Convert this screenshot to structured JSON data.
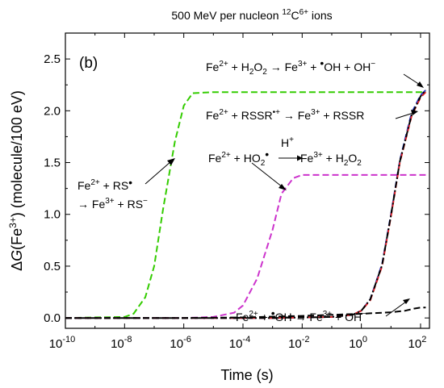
{
  "chart_data": {
    "type": "line",
    "title": "500 MeV per nucleon 12C6+ ions",
    "title_parts": {
      "pre": "500 MeV per nucleon ",
      "mass": "12",
      "ion": "C",
      "charge": "6+",
      "post": " ions"
    },
    "panel_label": "(b)",
    "xlabel": "Time (s)",
    "ylabel": "ΔG(Fe3+) (molecule/100 eV)",
    "ylabel_parts": {
      "delta": "Δ",
      "g": "G",
      "open": "(Fe",
      "charge": "3+",
      "close": ") (molecule/100 eV)"
    },
    "x_scale": "log",
    "xlim": [
      1e-10,
      200
    ],
    "ylim": [
      -0.1,
      2.75
    ],
    "x_ticks": [
      {
        "value": 1e-10,
        "base": "10",
        "exp": "-10"
      },
      {
        "value": 1e-08,
        "base": "10",
        "exp": "-8"
      },
      {
        "value": 1e-06,
        "base": "10",
        "exp": "-6"
      },
      {
        "value": 0.0001,
        "base": "10",
        "exp": "-4"
      },
      {
        "value": 0.01,
        "base": "10",
        "exp": "-2"
      },
      {
        "value": 1,
        "base": "10",
        "exp": "0"
      },
      {
        "value": 100,
        "base": "10",
        "exp": "2"
      }
    ],
    "y_ticks": [
      "0.0",
      "0.5",
      "1.0",
      "1.5",
      "2.0",
      "2.5"
    ],
    "grid": false,
    "series": [
      {
        "key": "rs",
        "color": "#33cc00",
        "style": "dashed",
        "x": [
          1e-10,
          1e-08,
          2e-08,
          5e-08,
          1e-07,
          2e-07,
          5e-07,
          1e-06,
          2e-06,
          1e-05,
          0.001,
          1,
          150
        ],
        "y": [
          0.0,
          0.01,
          0.04,
          0.2,
          0.5,
          1.05,
          1.7,
          2.05,
          2.17,
          2.18,
          2.18,
          2.18,
          2.18
        ]
      },
      {
        "key": "ho2",
        "color": "#cc33cc",
        "style": "dashed",
        "x": [
          1e-10,
          1e-06,
          1e-05,
          5e-05,
          0.0001,
          0.0003,
          0.001,
          0.002,
          0.005,
          0.01,
          0.1,
          150
        ],
        "y": [
          0.0,
          0.0,
          0.01,
          0.05,
          0.12,
          0.38,
          0.85,
          1.2,
          1.35,
          1.38,
          1.38,
          1.38
        ]
      },
      {
        "key": "h2o2",
        "color": "#2233cc",
        "style": "dashed",
        "x": [
          1e-10,
          0.001,
          0.1,
          0.5,
          1,
          2,
          5,
          10,
          20,
          50,
          100,
          150
        ],
        "y": [
          0.0,
          0.0,
          0.01,
          0.03,
          0.07,
          0.18,
          0.52,
          1.0,
          1.52,
          1.98,
          2.15,
          2.2
        ]
      },
      {
        "key": "rssr",
        "color": "#dd2222",
        "style": "dashed",
        "x": [
          1e-10,
          0.001,
          0.1,
          0.5,
          1,
          2,
          5,
          10,
          20,
          50,
          100,
          150
        ],
        "y": [
          0.0,
          0.0,
          0.01,
          0.03,
          0.07,
          0.17,
          0.5,
          0.98,
          1.5,
          1.95,
          2.13,
          2.18
        ]
      },
      {
        "key": "oh",
        "color": "#000000",
        "style": "dashed",
        "x": [
          1e-10,
          1e-06,
          0.0001,
          0.01,
          0.1,
          1,
          10,
          30,
          60,
          100,
          150
        ],
        "y": [
          0.0,
          0.0,
          0.005,
          0.02,
          0.03,
          0.04,
          0.055,
          0.07,
          0.09,
          0.1,
          0.1
        ]
      },
      {
        "key": "rs-dash",
        "color": "#000000",
        "style": "dotdash",
        "x": [
          1e-10,
          0.001,
          0.1,
          0.5,
          1,
          2,
          5,
          10,
          20,
          50,
          100,
          150
        ],
        "y": [
          0.0,
          0.0,
          0.01,
          0.03,
          0.07,
          0.18,
          0.51,
          0.99,
          1.51,
          1.96,
          2.14,
          2.2
        ]
      }
    ],
    "annotations": {
      "h2o2": {
        "a": "Fe",
        "a_c": "2+",
        "b": " + H",
        "b_s": "2",
        "c": "O",
        "c_s": "2",
        "d": " → Fe",
        "d_c": "3+",
        "e": " + ",
        "f": "•",
        "g": "OH + OH",
        "g_c": "−"
      },
      "rssr": {
        "a": "Fe",
        "a_c": "2+",
        "b": " + RSSR",
        "b_c": "•+",
        "c": " → Fe",
        "c_c": "3+",
        "d": " + RSSR"
      },
      "ho2": {
        "a": "Fe",
        "a_c": "2+",
        "b": " + HO",
        "b_s": "2",
        "c": "•",
        "d": "H",
        "d_c": "+",
        "e": "Fe",
        "e_c": "3+",
        "f": " + H",
        "f_s": "2",
        "g": "O",
        "g_s": "2"
      },
      "rs": {
        "a": "Fe",
        "a_c": "2+",
        "b": " + RS",
        "c": "•",
        "d": "→ Fe",
        "d_c": "3+",
        "e": " + RS",
        "e_c": "−"
      },
      "oh": {
        "a": "Fe",
        "a_c": "2+",
        "b": " + ",
        "c": "•",
        "d": "OH → Fe",
        "d_c": "3+",
        "e": " + OH",
        "e_c": "−"
      }
    }
  }
}
